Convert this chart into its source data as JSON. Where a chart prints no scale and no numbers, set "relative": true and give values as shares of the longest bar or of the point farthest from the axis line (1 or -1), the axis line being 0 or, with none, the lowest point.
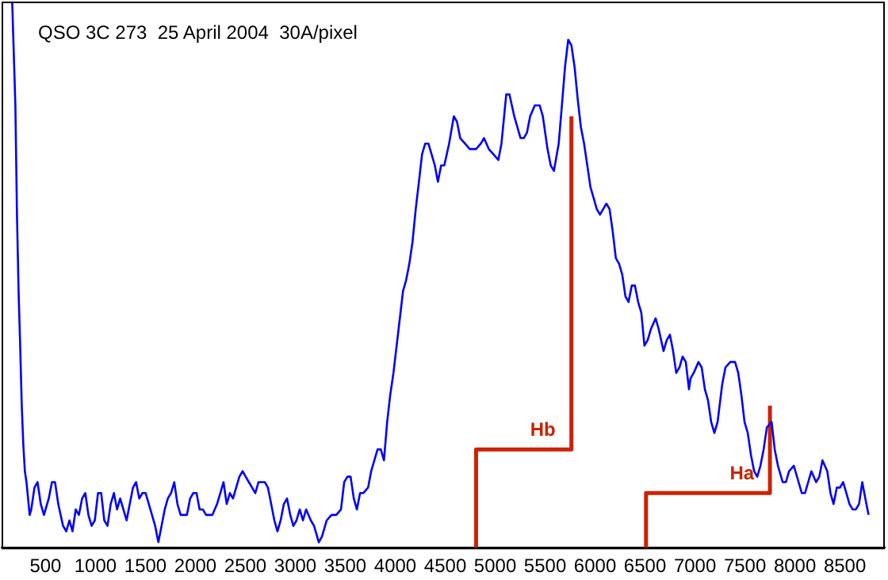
{
  "chart_data": {
    "type": "line",
    "title": "QSO 3C 273  25 April 2004  30A/pixel",
    "relative": true,
    "xlim": [
      60,
      8900
    ],
    "xticks": [
      500,
      1000,
      1500,
      2000,
      2500,
      3000,
      3500,
      4000,
      4500,
      5000,
      5500,
      6000,
      6500,
      7000,
      7500,
      8000,
      8500
    ],
    "grid": false,
    "legend": false,
    "marker": "none",
    "line_style": "solid",
    "tick_labels": "x",
    "series": [
      {
        "color": "#0000ff",
        "x": [
          166,
          198,
          214,
          230,
          246,
          262,
          277,
          293,
          309,
          341,
          357,
          389,
          420,
          452,
          484,
          532,
          564,
          595,
          627,
          675,
          707,
          739,
          770,
          802,
          834,
          866,
          898,
          929,
          961,
          993,
          1025,
          1057,
          1088,
          1120,
          1152,
          1184,
          1216,
          1247,
          1279,
          1311,
          1343,
          1375,
          1406,
          1438,
          1470,
          1502,
          1549,
          1597,
          1629,
          1661,
          1693,
          1724,
          1756,
          1788,
          1820,
          1852,
          1883,
          1915,
          1947,
          1979,
          2011,
          2042,
          2074,
          2106,
          2170,
          2217,
          2249,
          2281,
          2313,
          2345,
          2376,
          2408,
          2440,
          2472,
          2503,
          2535,
          2567,
          2599,
          2631,
          2662,
          2694,
          2726,
          2758,
          2790,
          2821,
          2853,
          2885,
          2917,
          2949,
          2980,
          3012,
          3044,
          3076,
          3108,
          3155,
          3187,
          3235,
          3266,
          3314,
          3362,
          3410,
          3457,
          3489,
          3521,
          3553,
          3585,
          3616,
          3648,
          3680,
          3728,
          3759,
          3791,
          3823,
          3855,
          3887,
          3919,
          3950,
          3982,
          4014,
          4046,
          4078,
          4109,
          4141,
          4173,
          4205,
          4237,
          4268,
          4300,
          4332,
          4364,
          4396,
          4427,
          4459,
          4491,
          4539,
          4586,
          4618,
          4650,
          4698,
          4745,
          4809,
          4857,
          4888,
          4936,
          4984,
          5032,
          5063,
          5111,
          5143,
          5191,
          5254,
          5286,
          5318,
          5350,
          5397,
          5445,
          5477,
          5524,
          5556,
          5588,
          5636,
          5668,
          5699,
          5731,
          5763,
          5795,
          5827,
          5858,
          5890,
          5922,
          5954,
          5986,
          6017,
          6049,
          6081,
          6113,
          6145,
          6176,
          6208,
          6240,
          6272,
          6304,
          6335,
          6367,
          6399,
          6431,
          6463,
          6494,
          6526,
          6558,
          6606,
          6637,
          6685,
          6717,
          6749,
          6781,
          6812,
          6844,
          6876,
          6908,
          6940,
          6955,
          6987,
          7035,
          7067,
          7099,
          7130,
          7162,
          7194,
          7226,
          7273,
          7305,
          7353,
          7401,
          7433,
          7464,
          7496,
          7528,
          7560,
          7592,
          7623,
          7655,
          7687,
          7719,
          7767,
          7798,
          7830,
          7878,
          7910,
          7942,
          7989,
          8037,
          8069,
          8101,
          8133,
          8165,
          8212,
          8244,
          8276,
          8324,
          8356,
          8387,
          8419,
          8451,
          8483,
          8515,
          8546,
          8578,
          8610,
          8642,
          8674,
          8705,
          8737
        ],
        "values": [
          1.0,
          0.81,
          0.61,
          0.47,
          0.37,
          0.26,
          0.19,
          0.14,
          0.12,
          0.06,
          0.07,
          0.11,
          0.12,
          0.08,
          0.06,
          0.09,
          0.12,
          0.12,
          0.08,
          0.04,
          0.03,
          0.05,
          0.03,
          0.07,
          0.06,
          0.09,
          0.1,
          0.06,
          0.04,
          0.05,
          0.1,
          0.1,
          0.05,
          0.04,
          0.08,
          0.1,
          0.07,
          0.09,
          0.07,
          0.05,
          0.08,
          0.11,
          0.12,
          0.09,
          0.1,
          0.1,
          0.07,
          0.04,
          0.01,
          0.04,
          0.07,
          0.09,
          0.1,
          0.12,
          0.08,
          0.06,
          0.06,
          0.06,
          0.09,
          0.1,
          0.1,
          0.07,
          0.07,
          0.06,
          0.06,
          0.08,
          0.1,
          0.12,
          0.08,
          0.1,
          0.09,
          0.11,
          0.13,
          0.14,
          0.13,
          0.12,
          0.11,
          0.1,
          0.12,
          0.12,
          0.12,
          0.11,
          0.08,
          0.05,
          0.03,
          0.05,
          0.08,
          0.09,
          0.06,
          0.04,
          0.05,
          0.07,
          0.05,
          0.07,
          0.05,
          0.04,
          0.01,
          0.02,
          0.05,
          0.06,
          0.06,
          0.07,
          0.12,
          0.13,
          0.13,
          0.09,
          0.07,
          0.1,
          0.1,
          0.11,
          0.14,
          0.16,
          0.18,
          0.18,
          0.16,
          0.23,
          0.28,
          0.32,
          0.37,
          0.42,
          0.47,
          0.49,
          0.52,
          0.56,
          0.62,
          0.67,
          0.72,
          0.74,
          0.74,
          0.72,
          0.7,
          0.67,
          0.7,
          0.7,
          0.74,
          0.79,
          0.78,
          0.75,
          0.74,
          0.73,
          0.73,
          0.74,
          0.75,
          0.73,
          0.72,
          0.71,
          0.74,
          0.83,
          0.83,
          0.79,
          0.75,
          0.75,
          0.76,
          0.79,
          0.81,
          0.81,
          0.79,
          0.73,
          0.7,
          0.69,
          0.74,
          0.81,
          0.88,
          0.93,
          0.92,
          0.88,
          0.82,
          0.77,
          0.74,
          0.7,
          0.66,
          0.64,
          0.62,
          0.61,
          0.62,
          0.63,
          0.62,
          0.58,
          0.53,
          0.52,
          0.5,
          0.46,
          0.45,
          0.48,
          0.48,
          0.45,
          0.43,
          0.37,
          0.38,
          0.4,
          0.42,
          0.4,
          0.36,
          0.38,
          0.39,
          0.36,
          0.32,
          0.33,
          0.35,
          0.34,
          0.29,
          0.31,
          0.32,
          0.34,
          0.33,
          0.29,
          0.27,
          0.23,
          0.21,
          0.23,
          0.3,
          0.33,
          0.34,
          0.34,
          0.32,
          0.28,
          0.23,
          0.21,
          0.17,
          0.14,
          0.13,
          0.15,
          0.18,
          0.22,
          0.23,
          0.18,
          0.15,
          0.12,
          0.12,
          0.14,
          0.15,
          0.12,
          0.1,
          0.1,
          0.12,
          0.14,
          0.12,
          0.13,
          0.16,
          0.14,
          0.1,
          0.08,
          0.11,
          0.11,
          0.12,
          0.1,
          0.08,
          0.07,
          0.07,
          0.08,
          0.12,
          0.09,
          0.06
        ]
      },
      {
        "name": "Hb",
        "color": "#cc2200",
        "x": [
          4809,
          4809,
          5763,
          5763
        ],
        "values": [
          0,
          0.18,
          0.18,
          0.79
        ]
      },
      {
        "name": "Ha",
        "color": "#cc2200",
        "x": [
          6510,
          6510,
          7750,
          7750
        ],
        "values": [
          0,
          0.1,
          0.1,
          0.26
        ]
      }
    ]
  }
}
